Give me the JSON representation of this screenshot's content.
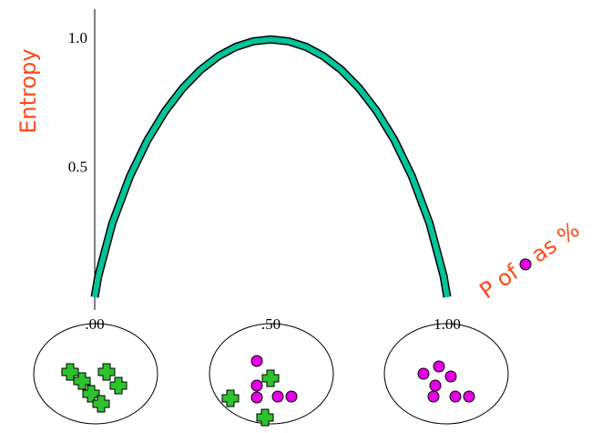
{
  "chart_data": {
    "type": "line",
    "x_label": [
      "P of",
      "as %"
    ],
    "y_label": "Entropy",
    "x": [
      0,
      0.01,
      0.05,
      0.1,
      0.15,
      0.2,
      0.25,
      0.3,
      0.35,
      0.4,
      0.45,
      0.5,
      0.55,
      0.6,
      0.65,
      0.7,
      0.75,
      0.8,
      0.85,
      0.9,
      0.95,
      0.99,
      1
    ],
    "values": [
      0,
      0.0808,
      0.2864,
      0.469,
      0.6098,
      0.7219,
      0.8113,
      0.8813,
      0.9341,
      0.971,
      0.9928,
      1,
      0.9928,
      0.971,
      0.9341,
      0.8813,
      0.8113,
      0.7219,
      0.6098,
      0.469,
      0.2864,
      0.0808,
      0
    ],
    "color": "#00c49a",
    "xlim": [
      0,
      1
    ],
    "ylim": [
      -0.05,
      1.1
    ],
    "xticks": [
      {
        "value": 0,
        "label": ".00"
      },
      {
        "value": 0.5,
        "label": ".50"
      },
      {
        "value": 1,
        "label": "1.00"
      }
    ],
    "yticks": [
      {
        "value": 0.5,
        "label": "0.5"
      },
      {
        "value": 1,
        "label": "1.0"
      }
    ]
  }
}
